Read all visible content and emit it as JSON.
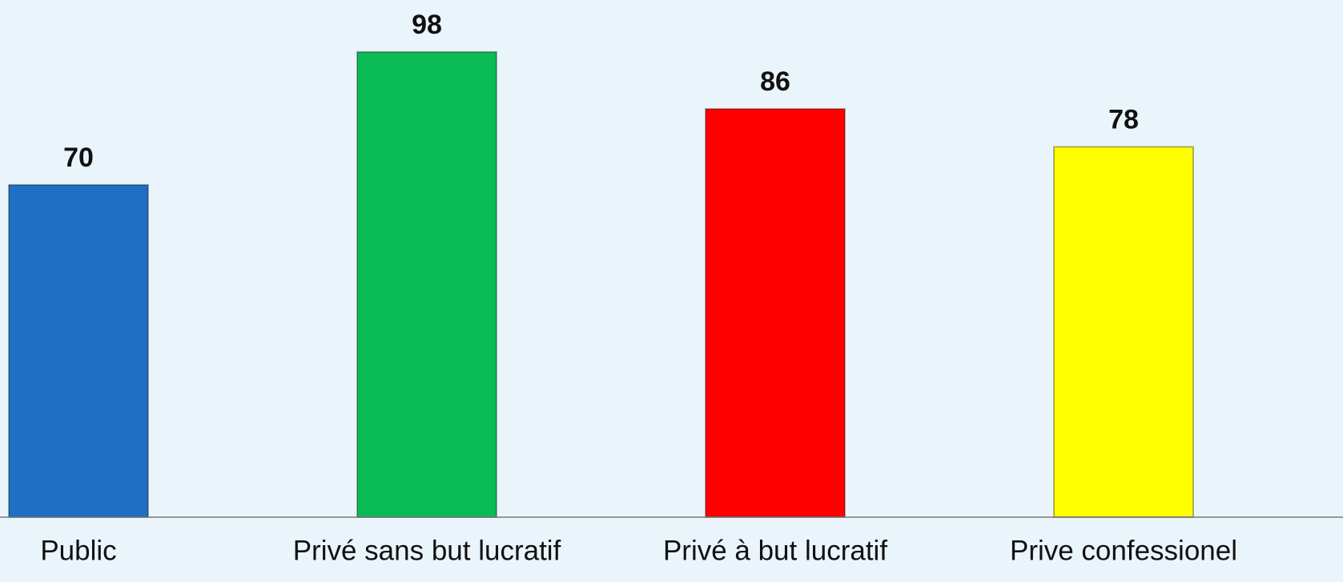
{
  "chart_data": {
    "type": "bar",
    "categories": [
      "Public",
      "Privé sans but lucratif",
      "Privé à but lucratif",
      "Prive confessionel"
    ],
    "values": [
      70,
      98,
      86,
      78
    ],
    "colors": [
      "#1f6fc5",
      "#0abb55",
      "#ff0000",
      "#ffff00"
    ],
    "ylim": [
      0,
      100
    ]
  }
}
